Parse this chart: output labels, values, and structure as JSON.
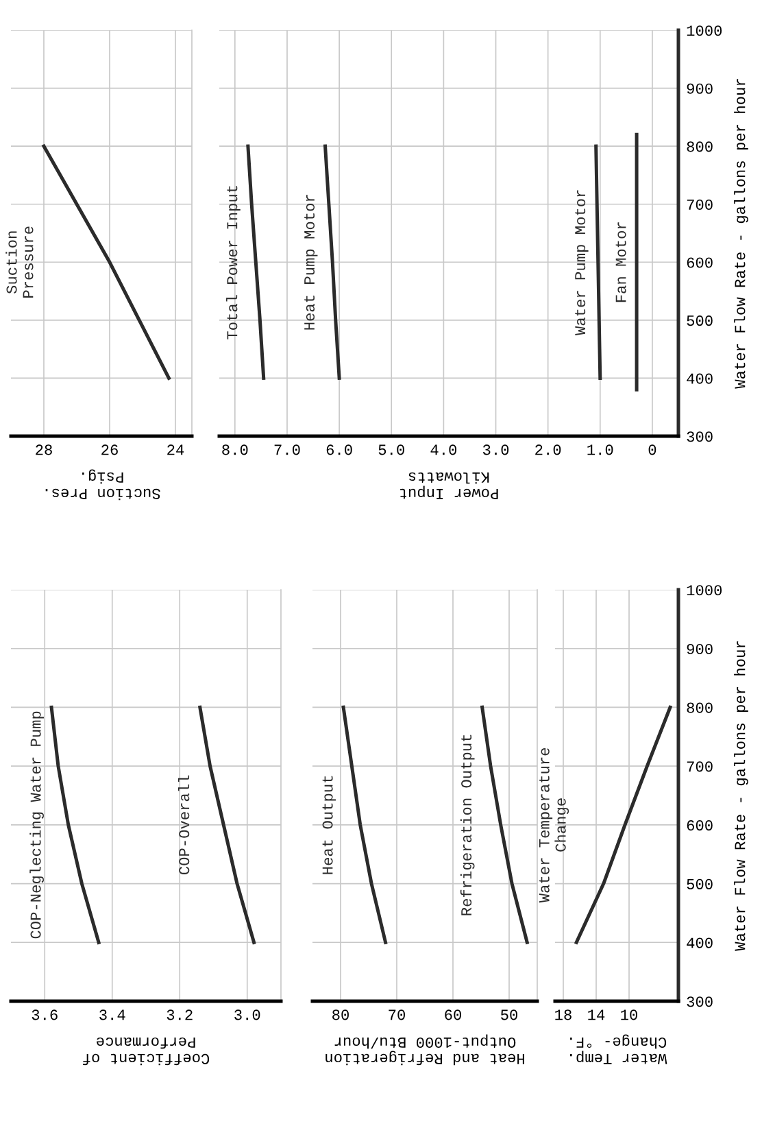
{
  "chart_data": [
    {
      "type": "line",
      "xlim": [
        29,
        23.5
      ],
      "xticks": [
        28,
        26,
        24
      ],
      "xlabel": "Suction Pres.\nPsig.",
      "ylim": [
        300,
        1000
      ],
      "yticks": [
        300,
        400,
        500,
        600,
        700,
        800,
        900,
        1000
      ],
      "grid": true,
      "tick_labels": "x",
      "series": [
        {
          "name": "Suction\nPressure",
          "color": "#2b2b2b",
          "x": [
            24.2,
            25.1,
            26.0,
            27.0,
            28.0
          ],
          "values": [
            400,
            500,
            600,
            700,
            800
          ]
        }
      ]
    },
    {
      "type": "line",
      "xlim": [
        8.3,
        -0.5
      ],
      "xticks": [
        {
          "value": 8,
          "label": "8.0"
        },
        {
          "value": 7,
          "label": "7.0"
        },
        {
          "value": 6,
          "label": "6.0"
        },
        {
          "value": 5,
          "label": "5.0"
        },
        {
          "value": 4,
          "label": "4.0"
        },
        {
          "value": 3,
          "label": "3.0"
        },
        {
          "value": 2,
          "label": "2.0"
        },
        {
          "value": 1,
          "label": "1.0"
        },
        0
      ],
      "xlabel": "Power Input\nKilowatts",
      "ylim": [
        300,
        1000
      ],
      "yticks": [
        300,
        400,
        500,
        600,
        700,
        800,
        900,
        1000
      ],
      "ylabel": "Water Flow Rate - gallons per hour",
      "grid": true,
      "series": [
        {
          "name": "Total Power Input",
          "color": "#2b2b2b",
          "x": [
            7.45,
            7.52,
            7.6,
            7.68,
            7.75
          ],
          "values": [
            400,
            500,
            600,
            700,
            800
          ]
        },
        {
          "name": "Heat Pump Motor",
          "color": "#2b2b2b",
          "x": [
            6.0,
            6.07,
            6.13,
            6.2,
            6.27
          ],
          "values": [
            400,
            500,
            600,
            700,
            800
          ]
        },
        {
          "name": "Water Pump Motor",
          "color": "#2b2b2b",
          "x": [
            1.0,
            1.02,
            1.04,
            1.06,
            1.08
          ],
          "values": [
            400,
            500,
            600,
            700,
            800
          ]
        },
        {
          "name": "Fan Motor",
          "color": "#2b2b2b",
          "x": [
            0.3,
            0.3,
            0.3
          ],
          "values": [
            380,
            600,
            820
          ]
        }
      ]
    },
    {
      "type": "line",
      "xlim": [
        3.7,
        2.9
      ],
      "xticks": [
        {
          "value": 3.6,
          "label": "3.6"
        },
        {
          "value": 3.4,
          "label": "3.4"
        },
        {
          "value": 3.2,
          "label": "3.2"
        },
        {
          "value": 3.0,
          "label": "3.0"
        }
      ],
      "xlabel": "Coefficient of\nPerformance",
      "ylim": [
        300,
        1000
      ],
      "yticks": [
        300,
        400,
        500,
        600,
        700,
        800,
        900,
        1000
      ],
      "grid": true,
      "tick_labels": "x",
      "series": [
        {
          "name": "COP-Neglecting Water Pump",
          "color": "#2b2b2b",
          "x": [
            3.44,
            3.49,
            3.53,
            3.56,
            3.58
          ],
          "values": [
            400,
            500,
            600,
            700,
            800
          ]
        },
        {
          "name": "COP-Overall",
          "color": "#2b2b2b",
          "x": [
            2.98,
            3.03,
            3.07,
            3.11,
            3.14
          ],
          "values": [
            400,
            500,
            600,
            700,
            800
          ]
        }
      ]
    },
    {
      "type": "line",
      "xlim": [
        85,
        45
      ],
      "xticks": [
        80,
        70,
        60,
        50
      ],
      "xlabel": "Heat and Refrigeration\nOutput-1000 Btu/hour",
      "ylim": [
        300,
        1000
      ],
      "yticks": [
        300,
        400,
        500,
        600,
        700,
        800,
        900,
        1000
      ],
      "grid": true,
      "tick_labels": "x",
      "series": [
        {
          "name": "Heat Output",
          "color": "#2b2b2b",
          "x": [
            72,
            74.5,
            76.5,
            78,
            79.5
          ],
          "values": [
            400,
            500,
            600,
            700,
            800
          ]
        },
        {
          "name": "Refrigeration Output",
          "color": "#2b2b2b",
          "x": [
            46.8,
            49.5,
            51.5,
            53.3,
            54.8
          ],
          "values": [
            400,
            500,
            600,
            700,
            800
          ]
        }
      ]
    },
    {
      "type": "line",
      "xlim": [
        19,
        4
      ],
      "xticks": [
        18,
        14,
        10
      ],
      "xlabel": "Water Temp.\nChange- °F.",
      "ylim": [
        300,
        1000
      ],
      "yticks": [
        300,
        400,
        500,
        600,
        700,
        800,
        900,
        1000
      ],
      "ylabel": "Water Flow Rate - gallons per hour",
      "grid": true,
      "series": [
        {
          "name": "Water Temperature\nChange",
          "color": "#2b2b2b",
          "x": [
            16.4,
            13.1,
            10.5,
            7.8,
            5.0
          ],
          "values": [
            400,
            500,
            600,
            700,
            800
          ]
        }
      ]
    }
  ]
}
